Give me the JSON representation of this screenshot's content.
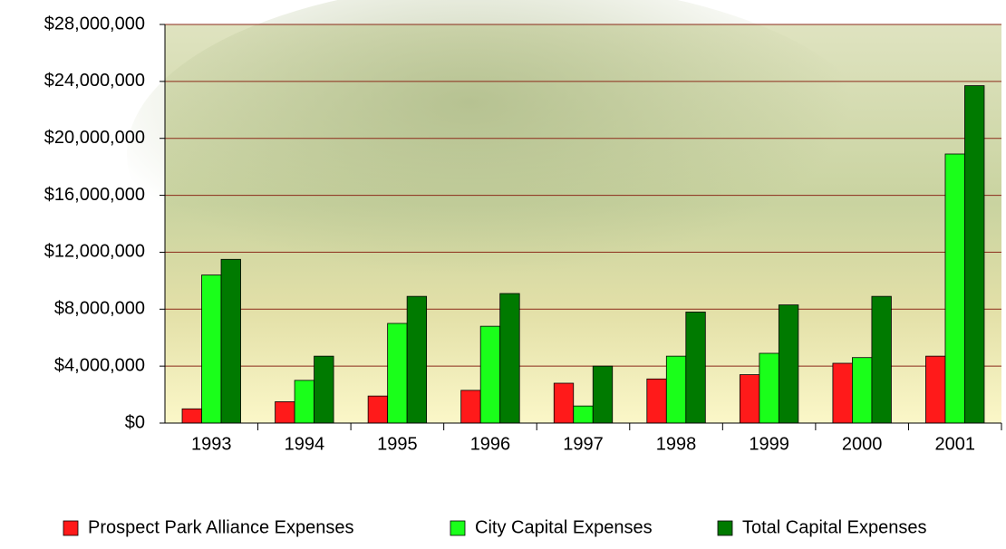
{
  "chart_data": {
    "type": "bar",
    "categories": [
      "1993",
      "1994",
      "1995",
      "1996",
      "1997",
      "1998",
      "1999",
      "2000",
      "2001"
    ],
    "series": [
      {
        "name": "Prospect Park Alliance Expenses",
        "color": "#ff1a1a",
        "values": [
          1000000,
          1500000,
          1900000,
          2300000,
          2800000,
          3100000,
          3400000,
          4200000,
          4700000
        ]
      },
      {
        "name": "City Capital Expenses",
        "color": "#1aff1a",
        "values": [
          10400000,
          3000000,
          7000000,
          6800000,
          1200000,
          4700000,
          4900000,
          4600000,
          18900000
        ]
      },
      {
        "name": "Total Capital Expenses",
        "color": "#007a00",
        "values": [
          11500000,
          4700000,
          8900000,
          9100000,
          4000000,
          7800000,
          8300000,
          8900000,
          23700000
        ]
      }
    ],
    "ylim": [
      0,
      28000000
    ],
    "yticks": [
      {
        "value": 0,
        "label": "$0"
      },
      {
        "value": 4000000,
        "label": "$4,000,000"
      },
      {
        "value": 8000000,
        "label": "$8,000,000"
      },
      {
        "value": 12000000,
        "label": "$12,000,000"
      },
      {
        "value": 16000000,
        "label": "$16,000,000"
      },
      {
        "value": 20000000,
        "label": "$20,000,000"
      },
      {
        "value": 24000000,
        "label": "$24,000,000"
      },
      {
        "value": 28000000,
        "label": "$28,000,000"
      }
    ],
    "grid": true,
    "legend": "bottom"
  }
}
